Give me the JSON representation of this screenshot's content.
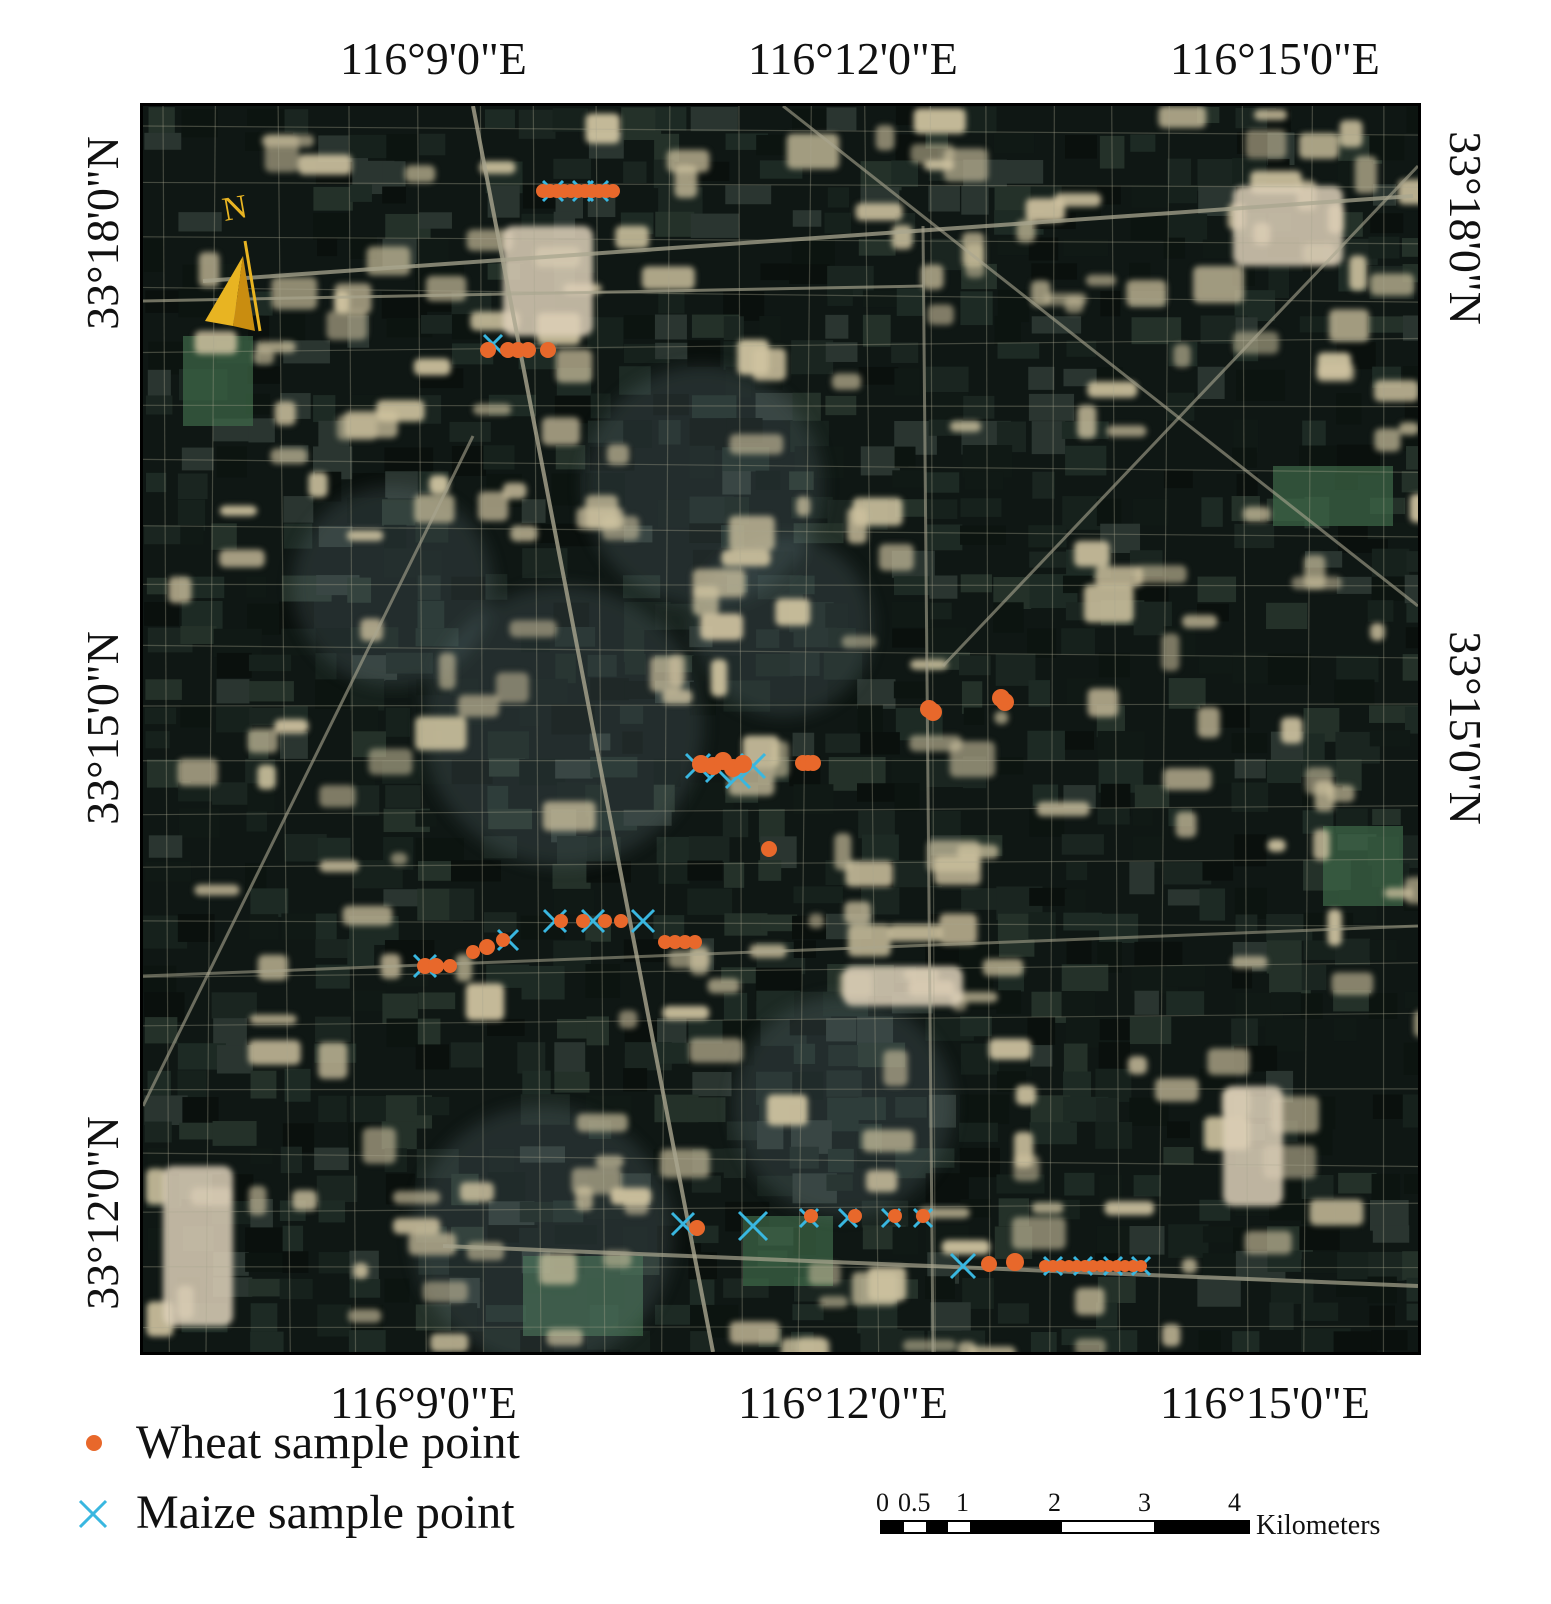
{
  "lon_labels_top": [
    "116°9'0\"E",
    "116°12'0\"E",
    "116°15'0\"E"
  ],
  "lon_labels_bottom": [
    "116°9'0\"E",
    "116°12'0\"E",
    "116°15'0\"E"
  ],
  "lat_labels_left": [
    "33°18'0\"N",
    "33°15'0\"N",
    "33°12'0\"N"
  ],
  "lat_labels_right": [
    "33°18'0\"N",
    "33°15'0\"N"
  ],
  "north_arrow_label": "N",
  "legend": {
    "wheat_label": "Wheat sample point",
    "maize_label": "Maize sample point",
    "wheat_color": "#e8682b",
    "maize_color": "#39b7e0"
  },
  "scale_bar": {
    "ticks": [
      "0",
      "0.5",
      "1",
      "2",
      "3",
      "4"
    ],
    "unit": "Kilometers"
  },
  "colors": {
    "field_dark": "#0f1714",
    "settlement": "#cfc3a0",
    "road": "#a9a68f"
  }
}
